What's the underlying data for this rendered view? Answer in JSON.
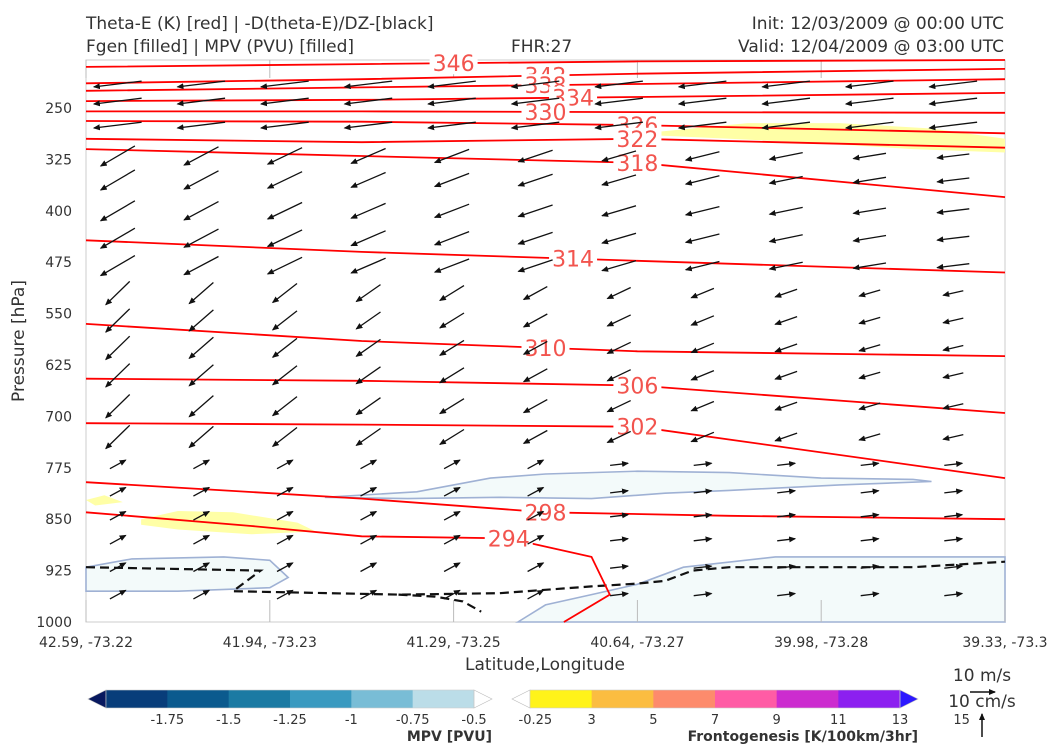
{
  "header": {
    "line1_left": "Theta-E (K) [red] | -D(theta-E)/DZ-[black]",
    "line2_left": "Fgen [filled] | MPV (PVU) [filled]",
    "fhr": "FHR:27",
    "init": "Init: 12/03/2009 @ 00:00 UTC",
    "valid": "Valid: 12/04/2009 @ 03:00 UTC"
  },
  "chart_data": {
    "type": "cross-section",
    "xlabel": "Latitude,Longitude",
    "ylabel": "Pressure [hPa]",
    "x_ticks": [
      "42.59, -73.22",
      "41.94, -73.23",
      "41.29, -73.25",
      "40.64, -73.27",
      "39.98, -73.28",
      "39.33, -73.3"
    ],
    "y_ticks": [
      250,
      325,
      400,
      475,
      550,
      625,
      700,
      775,
      850,
      925,
      1000
    ],
    "ylim": [
      1000,
      180
    ],
    "y_scale": "linear, inverted",
    "theta_e_contours": [
      {
        "label": "346",
        "label_at": 0.4,
        "points": [
          [
            0,
            190
          ],
          [
            0.3,
            186
          ],
          [
            0.6,
            182
          ],
          [
            1.0,
            180
          ]
        ]
      },
      {
        "label": "342",
        "label_at": 0.5,
        "points": [
          [
            0,
            214
          ],
          [
            0.3,
            208
          ],
          [
            0.6,
            200
          ],
          [
            1.0,
            193
          ]
        ]
      },
      {
        "label": "338",
        "label_at": 0.5,
        "points": [
          [
            0,
            225
          ],
          [
            0.3,
            220
          ],
          [
            0.6,
            215
          ],
          [
            1.0,
            208
          ]
        ]
      },
      {
        "label": "334",
        "label_at": 0.53,
        "points": [
          [
            0,
            240
          ],
          [
            0.3,
            238
          ],
          [
            0.6,
            234
          ],
          [
            1.0,
            228
          ]
        ]
      },
      {
        "label": "330",
        "label_at": 0.5,
        "points": [
          [
            0,
            255
          ],
          [
            0.3,
            255
          ],
          [
            0.6,
            256
          ],
          [
            1.0,
            257
          ]
        ]
      },
      {
        "label": "326",
        "label_at": 0.6,
        "points": [
          [
            0,
            269
          ],
          [
            0.3,
            270
          ],
          [
            0.6,
            275
          ],
          [
            1.0,
            287
          ]
        ]
      },
      {
        "label": "322",
        "label_at": 0.6,
        "points": [
          [
            0,
            295
          ],
          [
            0.3,
            300
          ],
          [
            0.6,
            295
          ],
          [
            1.0,
            308
          ]
        ]
      },
      {
        "label": "318",
        "label_at": 0.6,
        "points": [
          [
            0,
            310
          ],
          [
            0.3,
            320
          ],
          [
            0.6,
            330
          ],
          [
            1.0,
            380
          ]
        ]
      },
      {
        "label": "314",
        "label_at": 0.53,
        "points": [
          [
            0,
            443
          ],
          [
            0.3,
            460
          ],
          [
            0.6,
            473
          ],
          [
            1.0,
            490
          ]
        ]
      },
      {
        "label": "310",
        "label_at": 0.5,
        "points": [
          [
            0,
            565
          ],
          [
            0.3,
            590
          ],
          [
            0.6,
            605
          ],
          [
            1.0,
            612
          ]
        ]
      },
      {
        "label": "306",
        "label_at": 0.6,
        "points": [
          [
            0,
            645
          ],
          [
            0.3,
            648
          ],
          [
            0.6,
            655
          ],
          [
            1.0,
            695
          ]
        ]
      },
      {
        "label": "302",
        "label_at": 0.6,
        "points": [
          [
            0,
            710
          ],
          [
            0.3,
            712
          ],
          [
            0.6,
            715
          ],
          [
            1.0,
            790
          ]
        ]
      },
      {
        "label": "298",
        "label_at": 0.5,
        "points": [
          [
            0,
            796
          ],
          [
            0.3,
            820
          ],
          [
            0.5,
            840
          ],
          [
            0.7,
            845
          ],
          [
            1.0,
            850
          ]
        ]
      },
      {
        "label": "294",
        "label_at": 0.46,
        "points": [
          [
            0,
            840
          ],
          [
            0.18,
            860
          ],
          [
            0.3,
            875
          ],
          [
            0.46,
            878
          ],
          [
            0.55,
            905
          ],
          [
            0.57,
            960
          ],
          [
            0.52,
            1000
          ]
        ]
      }
    ],
    "mpv_thresholds": [
      -1.75,
      -1.5,
      -1.25,
      -1.0,
      -0.75,
      -0.5,
      -0.25
    ],
    "mpv_colorbar_label": "MPV [PVU]",
    "mpv_colors": [
      "#08195f",
      "#083d7a",
      "#0b5a8e",
      "#1b7aa3",
      "#3a9ac0",
      "#79bdd6",
      "#bbdde8",
      "#ffffff"
    ],
    "fgen_thresholds": [
      3,
      5,
      7,
      9,
      11,
      13,
      15
    ],
    "fgen_colorbar_label": "Frontogenesis [K/100km/3hr]",
    "fgen_colors": [
      "#ffffff",
      "#fff31a",
      "#fbbd41",
      "#fd8b6c",
      "#ff5ca5",
      "#cc2ccf",
      "#8c20f0",
      "#2c18ff"
    ],
    "mpv_regions": [
      {
        "points": [
          [
            0.26,
            818
          ],
          [
            0.36,
            810
          ],
          [
            0.44,
            790
          ],
          [
            0.5,
            784
          ],
          [
            0.6,
            780
          ],
          [
            0.7,
            782
          ],
          [
            0.8,
            790
          ],
          [
            0.9,
            792
          ],
          [
            0.92,
            795
          ],
          [
            0.82,
            800
          ],
          [
            0.7,
            808
          ],
          [
            0.63,
            812
          ],
          [
            0.55,
            820
          ],
          [
            0.45,
            818
          ],
          [
            0.35,
            820
          ],
          [
            0.26,
            818
          ]
        ]
      },
      {
        "points": [
          [
            0.0,
            920
          ],
          [
            0.05,
            908
          ],
          [
            0.15,
            905
          ],
          [
            0.2,
            910
          ],
          [
            0.22,
            935
          ],
          [
            0.2,
            950
          ],
          [
            0.1,
            955
          ],
          [
            0.0,
            955
          ]
        ]
      },
      {
        "points": [
          [
            0.47,
            1000
          ],
          [
            0.5,
            975
          ],
          [
            0.55,
            960
          ],
          [
            0.6,
            945
          ],
          [
            0.65,
            920
          ],
          [
            0.75,
            905
          ],
          [
            0.85,
            905
          ],
          [
            1.0,
            905
          ],
          [
            1.0,
            1000
          ]
        ]
      }
    ],
    "fgen_regions": [
      {
        "points": [
          [
            0.62,
            285
          ],
          [
            0.72,
            272
          ],
          [
            0.82,
            272
          ],
          [
            0.92,
            280
          ],
          [
            1.0,
            295
          ],
          [
            1.0,
            315
          ],
          [
            0.9,
            310
          ],
          [
            0.78,
            300
          ],
          [
            0.7,
            295
          ],
          [
            0.62,
            290
          ]
        ]
      },
      {
        "points": [
          [
            0.06,
            850
          ],
          [
            0.1,
            838
          ],
          [
            0.16,
            840
          ],
          [
            0.23,
            855
          ],
          [
            0.25,
            868
          ],
          [
            0.18,
            872
          ],
          [
            0.1,
            865
          ],
          [
            0.06,
            858
          ]
        ]
      },
      {
        "points": [
          [
            0.0,
            822
          ],
          [
            0.02,
            815
          ],
          [
            0.04,
            825
          ],
          [
            0.01,
            830
          ]
        ]
      }
    ],
    "dashed_zero_line": [
      [
        0.0,
        920
      ],
      [
        0.19,
        925
      ],
      [
        0.16,
        955
      ],
      [
        0.34,
        960
      ],
      [
        0.45,
        958
      ],
      [
        0.55,
        948
      ],
      [
        0.6,
        944
      ],
      [
        0.63,
        940
      ],
      [
        0.66,
        925
      ],
      [
        0.7,
        920
      ],
      [
        0.8,
        920
      ],
      [
        0.9,
        920
      ],
      [
        1.0,
        912
      ]
    ],
    "dashed_zero_line2": [
      [
        0.34,
        960
      ],
      [
        0.38,
        963
      ],
      [
        0.41,
        970
      ],
      [
        0.43,
        985
      ]
    ],
    "wind_levels": [
      215,
      240,
      275,
      320,
      355,
      400,
      440,
      480,
      520,
      560,
      600,
      640,
      685,
      730,
      770,
      810,
      845,
      880,
      920,
      960
    ],
    "wind_columns": 11,
    "wind_scale_label1": "10 m/s",
    "wind_scale_label2": "10 cm/s"
  }
}
